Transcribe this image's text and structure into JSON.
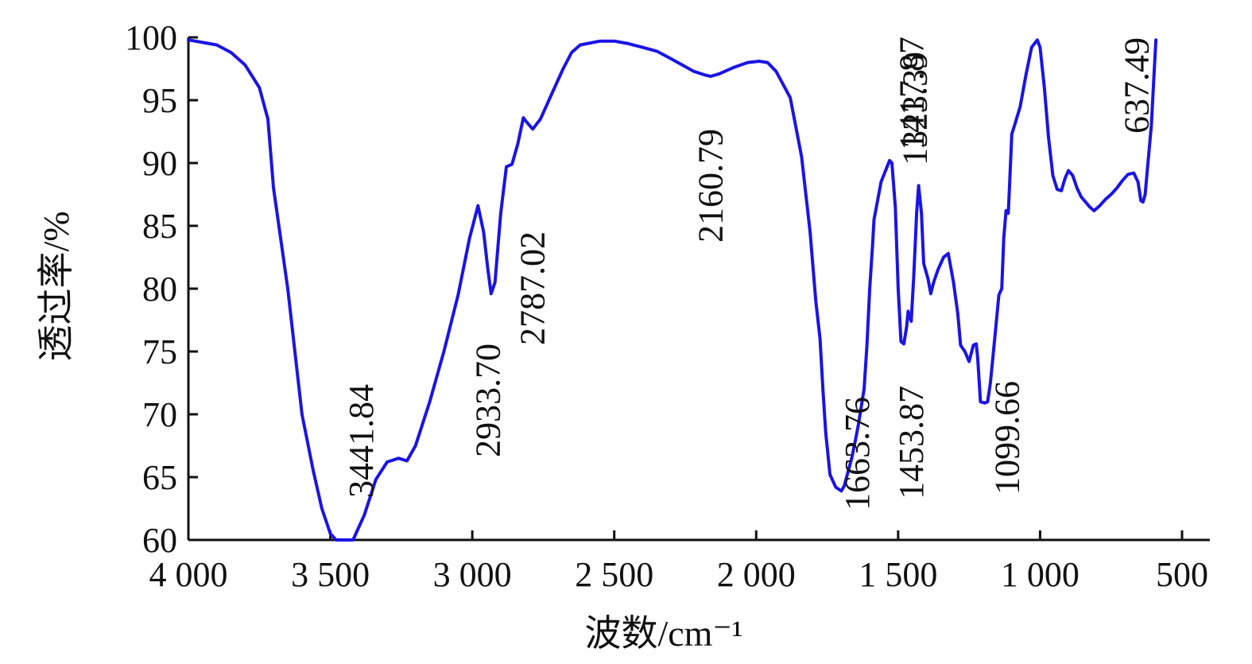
{
  "chart_data": {
    "type": "line",
    "xlabel": "波数/cm⁻¹",
    "ylabel": "透过率/%",
    "xlim": [
      4000,
      400
    ],
    "ylim": [
      60,
      100
    ],
    "x_ticks": [
      4000,
      3500,
      3000,
      2500,
      2000,
      1500,
      1000,
      500
    ],
    "x_tick_labels": [
      "4 000",
      "3 500",
      "3 000",
      "2 500",
      "2 000",
      "1 500",
      "1 000",
      "500"
    ],
    "y_ticks": [
      60,
      65,
      70,
      75,
      80,
      85,
      90,
      95,
      100
    ],
    "y_tick_labels": [
      "60",
      "65",
      "70",
      "75",
      "80",
      "85",
      "90",
      "95",
      "100"
    ],
    "grid": false,
    "line_color": "#1a14e6",
    "series": [
      {
        "points": [
          [
            4000,
            99.8
          ],
          [
            3900,
            99.4
          ],
          [
            3850,
            98.8
          ],
          [
            3800,
            97.8
          ],
          [
            3750,
            96.0
          ],
          [
            3720,
            93.5
          ],
          [
            3700,
            88.0
          ],
          [
            3650,
            80.0
          ],
          [
            3600,
            70.0
          ],
          [
            3560,
            65.5
          ],
          [
            3530,
            62.5
          ],
          [
            3500,
            60.5
          ],
          [
            3480,
            59.5
          ],
          [
            3441.84,
            59.2
          ],
          [
            3420,
            59.8
          ],
          [
            3380,
            62.0
          ],
          [
            3340,
            64.8
          ],
          [
            3300,
            66.2
          ],
          [
            3260,
            66.5
          ],
          [
            3230,
            66.3
          ],
          [
            3200,
            67.5
          ],
          [
            3150,
            71.0
          ],
          [
            3100,
            75.0
          ],
          [
            3050,
            79.5
          ],
          [
            3010,
            84.0
          ],
          [
            2980,
            86.6
          ],
          [
            2960,
            84.5
          ],
          [
            2945,
            81.5
          ],
          [
            2933.7,
            79.6
          ],
          [
            2920,
            80.5
          ],
          [
            2900,
            86.0
          ],
          [
            2880,
            89.7
          ],
          [
            2860,
            89.9
          ],
          [
            2840,
            91.5
          ],
          [
            2820,
            93.6
          ],
          [
            2810,
            93.3
          ],
          [
            2787.02,
            92.7
          ],
          [
            2760,
            93.5
          ],
          [
            2720,
            95.5
          ],
          [
            2680,
            97.5
          ],
          [
            2650,
            98.8
          ],
          [
            2620,
            99.4
          ],
          [
            2550,
            99.7
          ],
          [
            2500,
            99.7
          ],
          [
            2450,
            99.5
          ],
          [
            2400,
            99.2
          ],
          [
            2350,
            98.9
          ],
          [
            2300,
            98.3
          ],
          [
            2260,
            97.8
          ],
          [
            2220,
            97.3
          ],
          [
            2180,
            97.0
          ],
          [
            2160.79,
            96.9
          ],
          [
            2130,
            97.1
          ],
          [
            2080,
            97.6
          ],
          [
            2030,
            98.0
          ],
          [
            1990,
            98.1
          ],
          [
            1960,
            98.0
          ],
          [
            1930,
            97.3
          ],
          [
            1880,
            95.2
          ],
          [
            1840,
            90.5
          ],
          [
            1810,
            84.5
          ],
          [
            1790,
            79.0
          ],
          [
            1775,
            76.0
          ],
          [
            1765,
            72.0
          ],
          [
            1755,
            68.5
          ],
          [
            1740,
            65.2
          ],
          [
            1720,
            64.2
          ],
          [
            1700,
            63.9
          ],
          [
            1690,
            64.3
          ],
          [
            1663.76,
            66.5
          ],
          [
            1650,
            68.0
          ],
          [
            1640,
            69.2
          ],
          [
            1620,
            72.0
          ],
          [
            1610,
            75.5
          ],
          [
            1600,
            80.0
          ],
          [
            1590,
            83.5
          ],
          [
            1585,
            85.5
          ],
          [
            1560,
            88.5
          ],
          [
            1530,
            90.2
          ],
          [
            1522,
            90.0
          ],
          [
            1510,
            86.5
          ],
          [
            1500,
            80.0
          ],
          [
            1490,
            75.8
          ],
          [
            1480,
            75.6
          ],
          [
            1470,
            77.0
          ],
          [
            1465,
            78.2
          ],
          [
            1453.87,
            77.4
          ],
          [
            1445,
            81.0
          ],
          [
            1435,
            86.0
          ],
          [
            1428,
            88.2
          ],
          [
            1417.87,
            86.0
          ],
          [
            1410,
            82.0
          ],
          [
            1395,
            80.8
          ],
          [
            1385,
            79.6
          ],
          [
            1375,
            80.5
          ],
          [
            1360,
            81.5
          ],
          [
            1340,
            82.5
          ],
          [
            1323.39,
            82.8
          ],
          [
            1305,
            80.5
          ],
          [
            1290,
            78.0
          ],
          [
            1280,
            75.5
          ],
          [
            1265,
            75.0
          ],
          [
            1250,
            74.2
          ],
          [
            1235,
            75.5
          ],
          [
            1225,
            75.6
          ],
          [
            1220,
            74.5
          ],
          [
            1210,
            71.0
          ],
          [
            1195,
            70.9
          ],
          [
            1185,
            71.0
          ],
          [
            1175,
            72.5
          ],
          [
            1160,
            76.0
          ],
          [
            1145,
            79.5
          ],
          [
            1135,
            80.0
          ],
          [
            1128,
            84.0
          ],
          [
            1120,
            86.2
          ],
          [
            1112,
            86.0
          ],
          [
            1105,
            89.5
          ],
          [
            1099.66,
            92.3
          ],
          [
            1090,
            93.0
          ],
          [
            1070,
            94.5
          ],
          [
            1050,
            97.0
          ],
          [
            1030,
            99.2
          ],
          [
            1010,
            99.8
          ],
          [
            1000,
            99.2
          ],
          [
            985,
            96.0
          ],
          [
            970,
            92.0
          ],
          [
            955,
            89.0
          ],
          [
            940,
            87.9
          ],
          [
            925,
            87.8
          ],
          [
            912,
            88.8
          ],
          [
            900,
            89.4
          ],
          [
            885,
            89.0
          ],
          [
            870,
            88.0
          ],
          [
            855,
            87.3
          ],
          [
            840,
            86.9
          ],
          [
            825,
            86.5
          ],
          [
            810,
            86.2
          ],
          [
            790,
            86.6
          ],
          [
            770,
            87.1
          ],
          [
            750,
            87.5
          ],
          [
            730,
            88.0
          ],
          [
            710,
            88.6
          ],
          [
            690,
            89.1
          ],
          [
            670,
            89.2
          ],
          [
            655,
            88.5
          ],
          [
            645,
            87.0
          ],
          [
            637.49,
            86.9
          ],
          [
            630,
            87.5
          ],
          [
            620,
            90.0
          ],
          [
            608,
            93.0
          ],
          [
            600,
            96.5
          ],
          [
            592,
            99.8
          ]
        ]
      }
    ],
    "annotations": [
      {
        "text": "3441.84",
        "x": 3441.84
      },
      {
        "text": "2933.70",
        "x": 2933.7
      },
      {
        "text": "2787.02",
        "x": 2787.02
      },
      {
        "text": "2160.79",
        "x": 2160.79
      },
      {
        "text": "1663.76",
        "x": 1663.76
      },
      {
        "text": "1453.87",
        "x": 1453.87
      },
      {
        "text": "1417.87",
        "x": 1417.87
      },
      {
        "text": "1323.39",
        "x": 1323.39
      },
      {
        "text": "1099.66",
        "x": 1099.66
      },
      {
        "text": "637.49",
        "x": 637.49
      }
    ]
  }
}
